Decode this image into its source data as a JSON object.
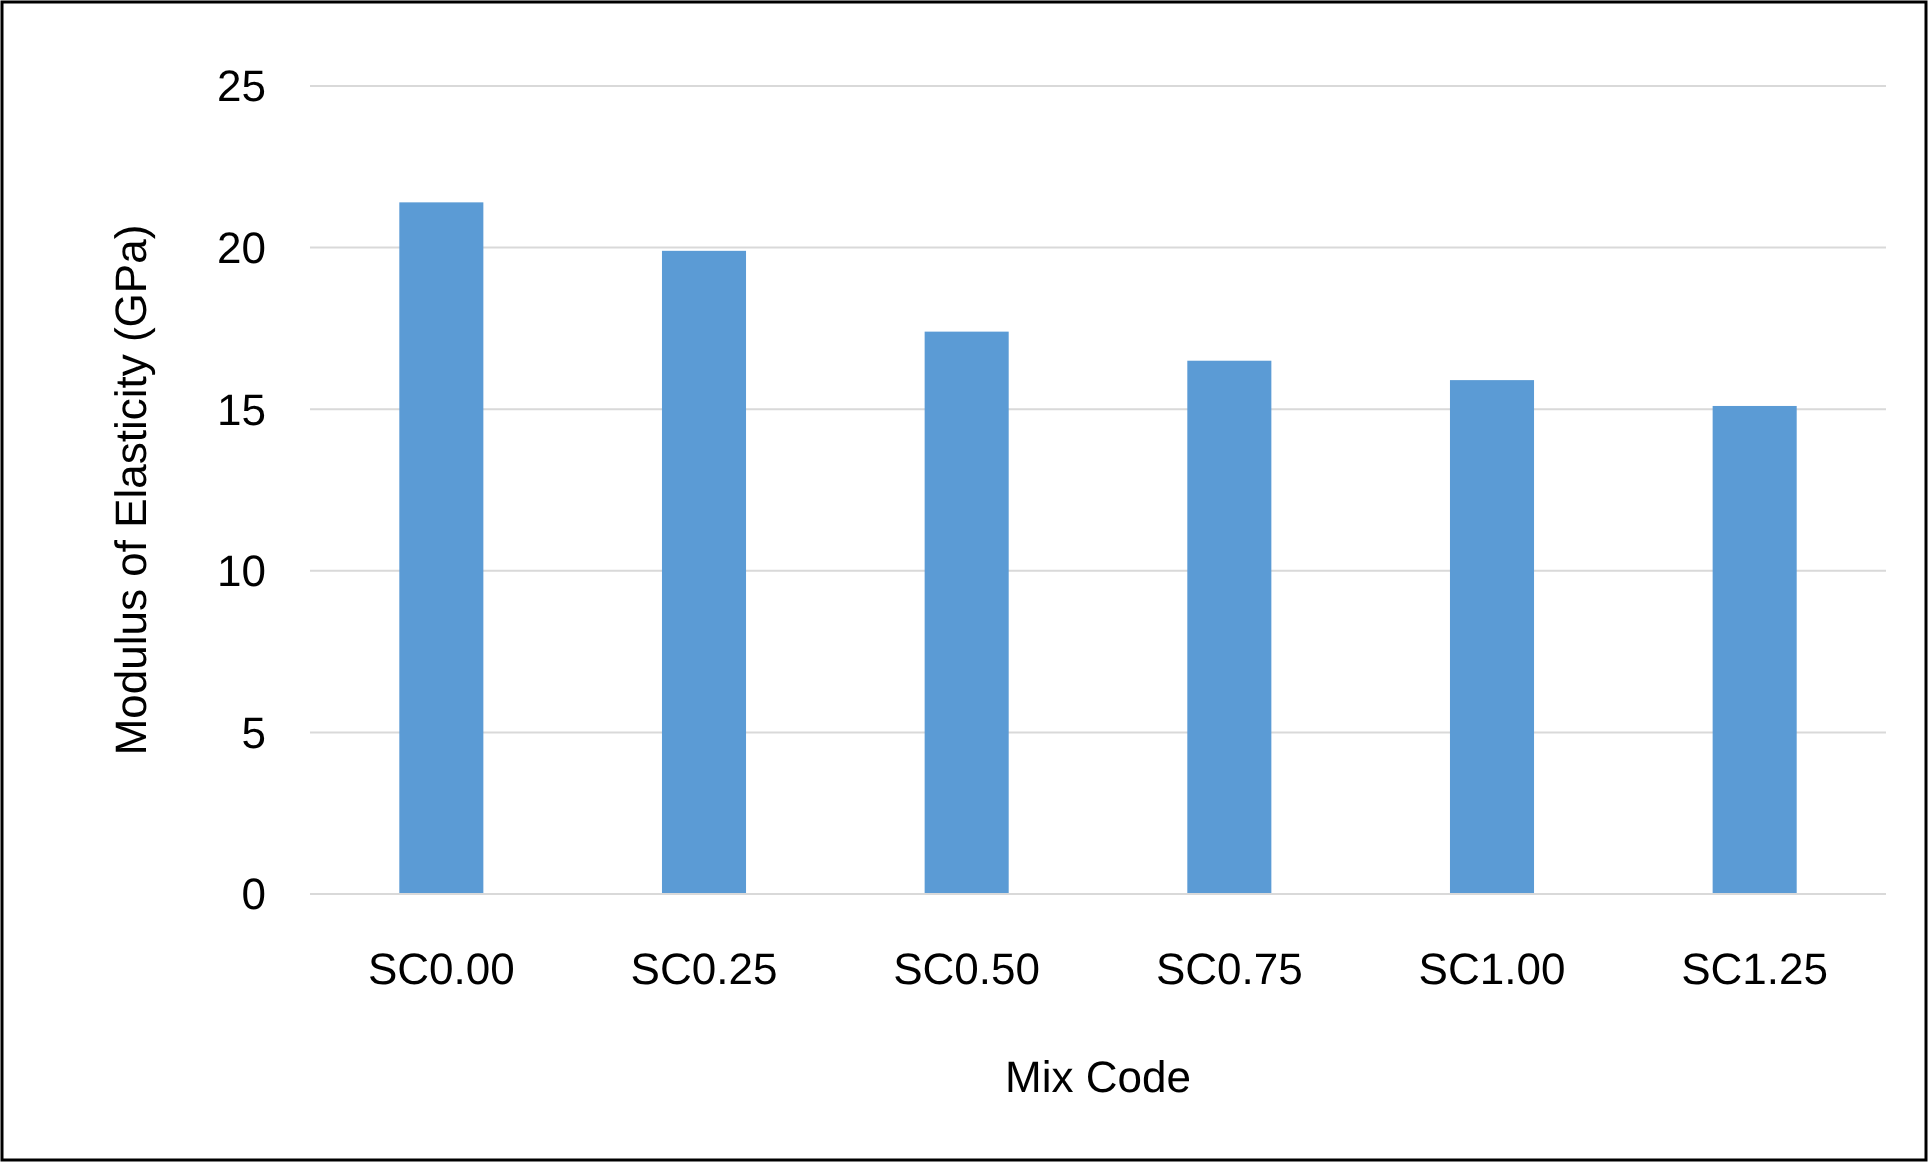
{
  "chart_data": {
    "type": "bar",
    "xlabel": "Mix Code",
    "ylabel": "Modulus of Elasticity (GPa)",
    "categories": [
      "SC0.00",
      "SC0.25",
      "SC0.50",
      "SC0.75",
      "SC1.00",
      "SC1.25"
    ],
    "values": [
      21.4,
      19.9,
      17.4,
      16.5,
      15.9,
      15.1
    ],
    "color": "#5b9bd5",
    "ylim": [
      0,
      25
    ],
    "yticks": [
      0,
      5,
      10,
      15,
      20,
      25
    ],
    "grid": "y"
  }
}
